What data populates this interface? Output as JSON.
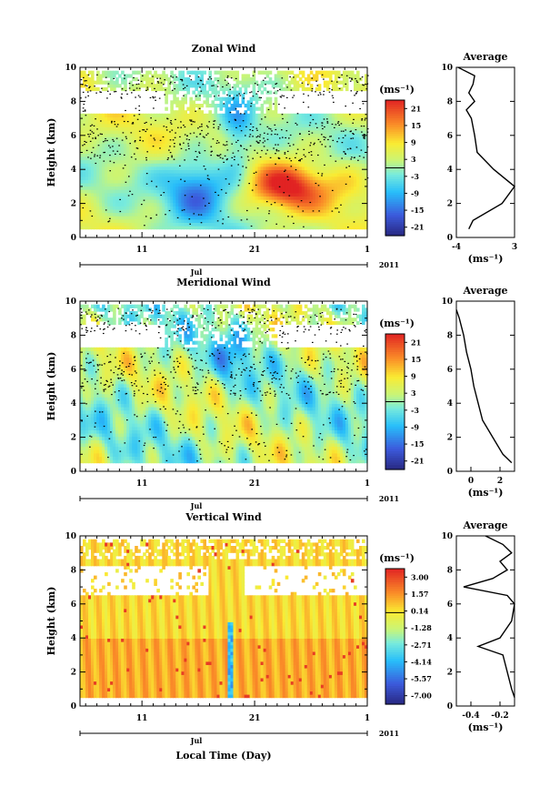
{
  "chart_data": [
    {
      "type": "heatmap",
      "title": "Zonal Wind",
      "ylabel": "Height (km)",
      "yticks": [
        0,
        2,
        4,
        6,
        8,
        10
      ],
      "ylim": [
        0,
        10
      ],
      "xticks": [
        "11",
        "21",
        "1"
      ],
      "x_month_label": "Jul",
      "year_label": "2011",
      "colorbar_unit": "(ms⁻¹)",
      "colorbar_ticks": [
        "21",
        "15",
        "9",
        "3",
        "-3",
        "-9",
        "-15",
        "-21"
      ],
      "colorbar_range": [
        -24,
        24
      ],
      "features": [
        {
          "desc": "westward jet",
          "day": 16,
          "height": 3,
          "value": -12
        },
        {
          "desc": "eastward maximum",
          "day": 24,
          "height": 3,
          "value": 18
        }
      ],
      "average_profile": {
        "title": "Average",
        "xlabel": "(ms⁻¹)",
        "xticks": [
          "-4",
          "3"
        ],
        "xlim": [
          -4,
          3
        ],
        "height": [
          0.5,
          1,
          2,
          3,
          4,
          5,
          6,
          7,
          7.5,
          8,
          8.5,
          9,
          9.5,
          10
        ],
        "value": [
          -2.5,
          -2.0,
          1.5,
          3.0,
          0.5,
          -1.5,
          -1.8,
          -2.2,
          -2.8,
          -1.8,
          -2.5,
          -2.0,
          -1.8,
          -3.8
        ]
      }
    },
    {
      "type": "heatmap",
      "title": "Meridional Wind",
      "ylabel": "Height (km)",
      "yticks": [
        0,
        2,
        4,
        6,
        8,
        10
      ],
      "ylim": [
        0,
        10
      ],
      "xticks": [
        "11",
        "21",
        "1"
      ],
      "x_month_label": "Jul",
      "year_label": "2011",
      "colorbar_unit": "(ms⁻¹)",
      "colorbar_ticks": [
        "21",
        "15",
        "9",
        "3",
        "-3",
        "-9",
        "-15",
        "-21"
      ],
      "colorbar_range": [
        -24,
        24
      ],
      "average_profile": {
        "title": "Average",
        "xlabel": "(ms⁻¹)",
        "xticks": [
          "0",
          "2"
        ],
        "xlim": [
          -1,
          3
        ],
        "height": [
          0.5,
          1,
          2,
          3,
          4,
          5,
          6,
          7,
          8,
          9,
          9.5
        ],
        "value": [
          2.8,
          2.2,
          1.5,
          0.8,
          0.5,
          0.2,
          0.0,
          -0.3,
          -0.5,
          -0.8,
          -1.0
        ]
      }
    },
    {
      "type": "heatmap",
      "title": "Vertical Wind",
      "ylabel": "Height (km)",
      "xlabel": "Local Time (Day)",
      "yticks": [
        0,
        2,
        4,
        6,
        8,
        10
      ],
      "ylim": [
        0,
        10
      ],
      "xticks": [
        "11",
        "21",
        "1"
      ],
      "x_month_label": "Jul",
      "year_label": "2011",
      "colorbar_unit": "(ms⁻¹)",
      "colorbar_ticks": [
        "3.00",
        "1.57",
        "0.14",
        "-1.28",
        "-2.71",
        "-4.14",
        "-5.57",
        "-7.00"
      ],
      "colorbar_range": [
        -7.7,
        3.7
      ],
      "average_profile": {
        "title": "Average",
        "xlabel": "(ms⁻¹)",
        "xticks": [
          "-0.4",
          "-0.2"
        ],
        "xlim": [
          -0.5,
          -0.1
        ],
        "height": [
          0.5,
          1,
          2,
          3,
          3.5,
          4,
          5,
          6,
          6.5,
          7,
          7.5,
          8,
          8.5,
          9,
          9.5,
          10
        ],
        "value": [
          -0.1,
          -0.12,
          -0.15,
          -0.18,
          -0.35,
          -0.2,
          -0.12,
          -0.1,
          -0.15,
          -0.45,
          -0.25,
          -0.15,
          -0.2,
          -0.12,
          -0.18,
          -0.3
        ]
      }
    }
  ]
}
